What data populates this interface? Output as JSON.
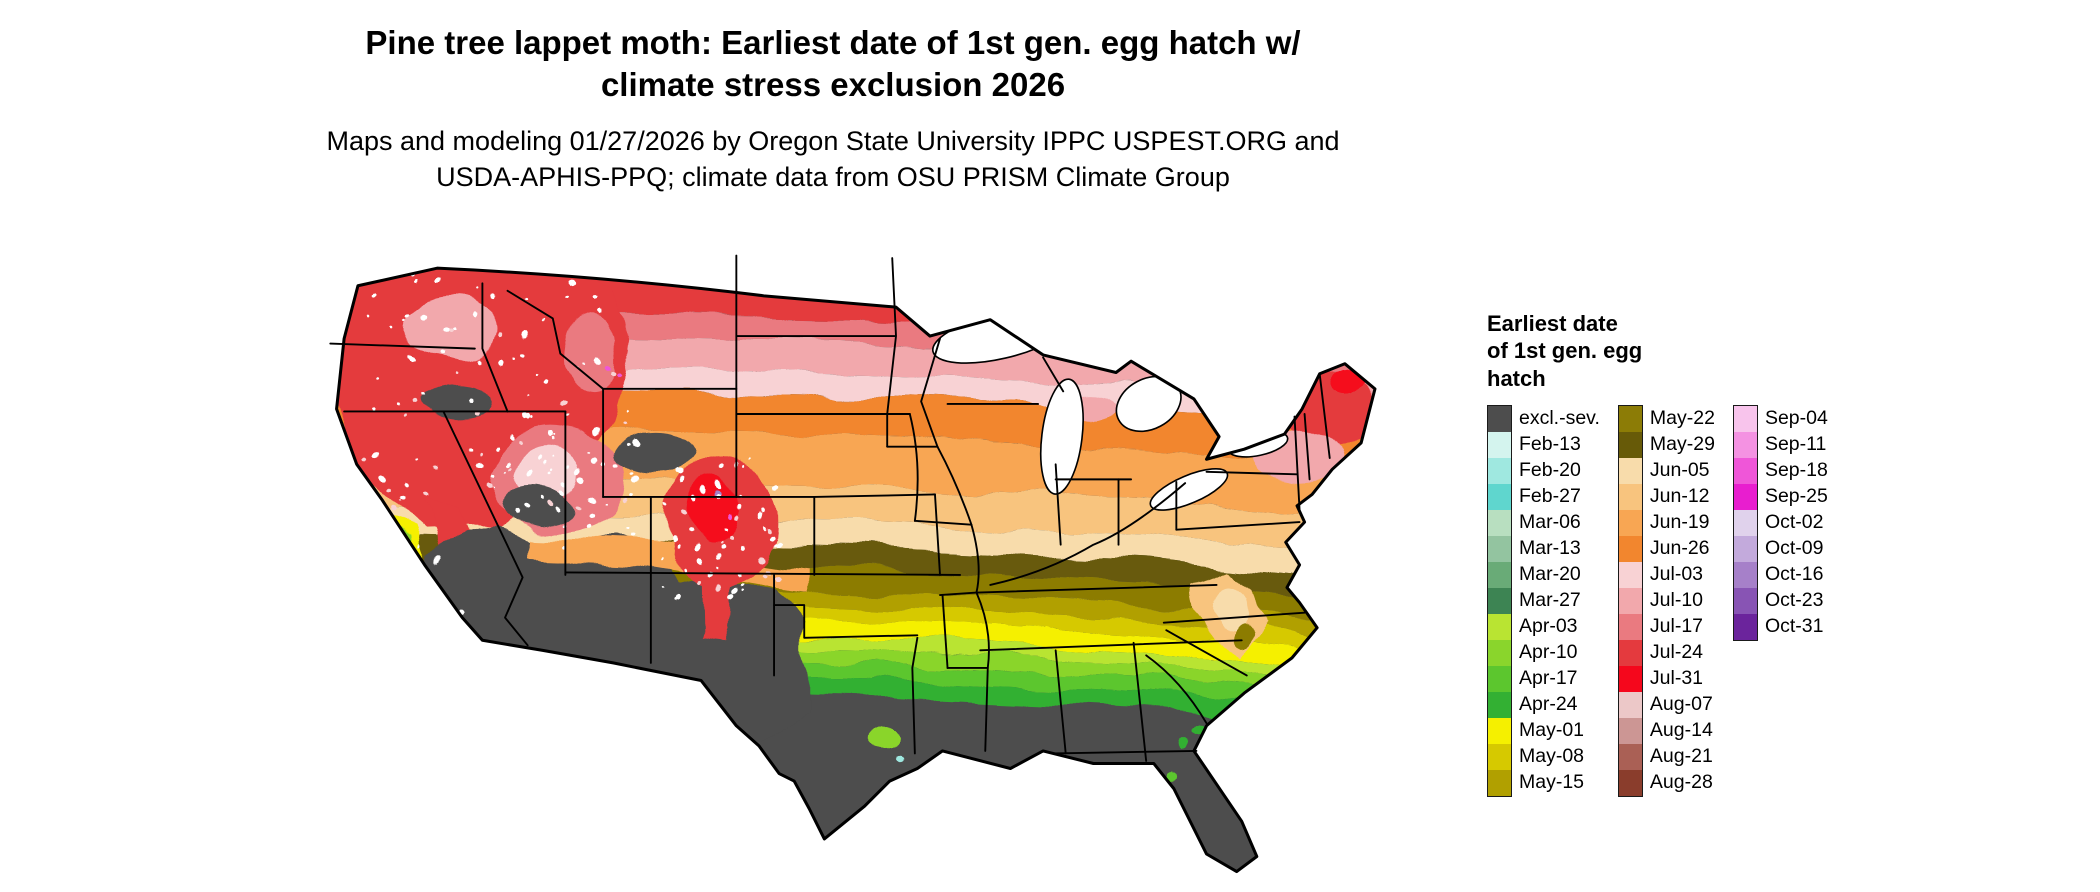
{
  "title": {
    "line1": "Pine tree lappet moth: Earliest date of 1st gen. egg hatch w/",
    "line2": "climate stress exclusion 2026"
  },
  "subtitle": {
    "line1": "Maps and modeling 01/27/2026 by Oregon State University IPPC USPEST.ORG and",
    "line2": "USDA-APHIS-PPQ; climate data from OSU PRISM Climate Group"
  },
  "legend": {
    "title_line1": "Earliest date",
    "title_line2": "of 1st gen. egg",
    "title_line3": "hatch",
    "columns": [
      {
        "entries": [
          {
            "label": "excl.-sev.",
            "color": "#4d4d4d"
          },
          {
            "label": "Feb-13",
            "color": "#d4f4ee"
          },
          {
            "label": "Feb-20",
            "color": "#9fe8e0"
          },
          {
            "label": "Feb-27",
            "color": "#5fd6ce"
          },
          {
            "label": "Mar-06",
            "color": "#b8dfc0"
          },
          {
            "label": "Mar-13",
            "color": "#93c4a0"
          },
          {
            "label": "Mar-20",
            "color": "#69ab77"
          },
          {
            "label": "Mar-27",
            "color": "#3d8453"
          },
          {
            "label": "Apr-03",
            "color": "#b9e432"
          },
          {
            "label": "Apr-10",
            "color": "#8ad52c"
          },
          {
            "label": "Apr-17",
            "color": "#5cc62e"
          },
          {
            "label": "Apr-24",
            "color": "#33b033"
          },
          {
            "label": "May-01",
            "color": "#f5f000"
          },
          {
            "label": "May-08",
            "color": "#d6c900"
          },
          {
            "label": "May-15",
            "color": "#b1a000"
          }
        ]
      },
      {
        "entries": [
          {
            "label": "May-22",
            "color": "#8c7c06"
          },
          {
            "label": "May-29",
            "color": "#675a08"
          },
          {
            "label": "Jun-05",
            "color": "#f8dcab"
          },
          {
            "label": "Jun-12",
            "color": "#f8c47e"
          },
          {
            "label": "Jun-19",
            "color": "#f8a653"
          },
          {
            "label": "Jun-26",
            "color": "#f2862e"
          },
          {
            "label": "Jul-03",
            "color": "#f8d2d4"
          },
          {
            "label": "Jul-10",
            "color": "#f2a8ac"
          },
          {
            "label": "Jul-17",
            "color": "#ea7a80"
          },
          {
            "label": "Jul-24",
            "color": "#e43a3e"
          },
          {
            "label": "Jul-31",
            "color": "#f5071c"
          },
          {
            "label": "Aug-07",
            "color": "#ecc8c8"
          },
          {
            "label": "Aug-14",
            "color": "#cc9694"
          },
          {
            "label": "Aug-21",
            "color": "#aa6055"
          },
          {
            "label": "Aug-28",
            "color": "#8a3d2c"
          }
        ]
      },
      {
        "entries": [
          {
            "label": "Sep-04",
            "color": "#f8c4ec"
          },
          {
            "label": "Sep-11",
            "color": "#f492e2"
          },
          {
            "label": "Sep-18",
            "color": "#ef56d8"
          },
          {
            "label": "Sep-25",
            "color": "#e81ecf"
          },
          {
            "label": "Oct-02",
            "color": "#e0d2ec"
          },
          {
            "label": "Oct-09",
            "color": "#c3aadc"
          },
          {
            "label": "Oct-16",
            "color": "#a680c9"
          },
          {
            "label": "Oct-23",
            "color": "#8854b4"
          },
          {
            "label": "Oct-31",
            "color": "#6b249c"
          }
        ]
      }
    ]
  },
  "map_bands": [
    {
      "label": "Jul-31",
      "from": 8,
      "to": 45
    },
    {
      "label": "Jul-24",
      "from": 45,
      "to": 75
    },
    {
      "label": "Jul-17",
      "from": 75,
      "to": 92
    },
    {
      "label": "Jul-10",
      "from": 92,
      "to": 117
    },
    {
      "label": "Jul-03",
      "from": 117,
      "to": 137
    },
    {
      "label": "Jun-26",
      "from": 137,
      "to": 167
    },
    {
      "label": "Jun-19",
      "from": 167,
      "to": 207
    },
    {
      "label": "Jun-12",
      "from": 207,
      "to": 236
    },
    {
      "label": "Jun-05",
      "from": 236,
      "to": 256
    },
    {
      "label": "May-29",
      "from": 256,
      "to": 273
    },
    {
      "label": "May-22",
      "from": 273,
      "to": 291
    },
    {
      "label": "May-15",
      "from": 291,
      "to": 303
    },
    {
      "label": "May-08",
      "from": 303,
      "to": 314
    },
    {
      "label": "May-01",
      "from": 314,
      "to": 330
    },
    {
      "label": "Apr-03",
      "from": 330,
      "to": 339
    },
    {
      "label": "Apr-10",
      "from": 339,
      "to": 349
    },
    {
      "label": "Apr-17",
      "from": 349,
      "to": 361
    },
    {
      "label": "Apr-24",
      "from": 361,
      "to": 375
    }
  ]
}
